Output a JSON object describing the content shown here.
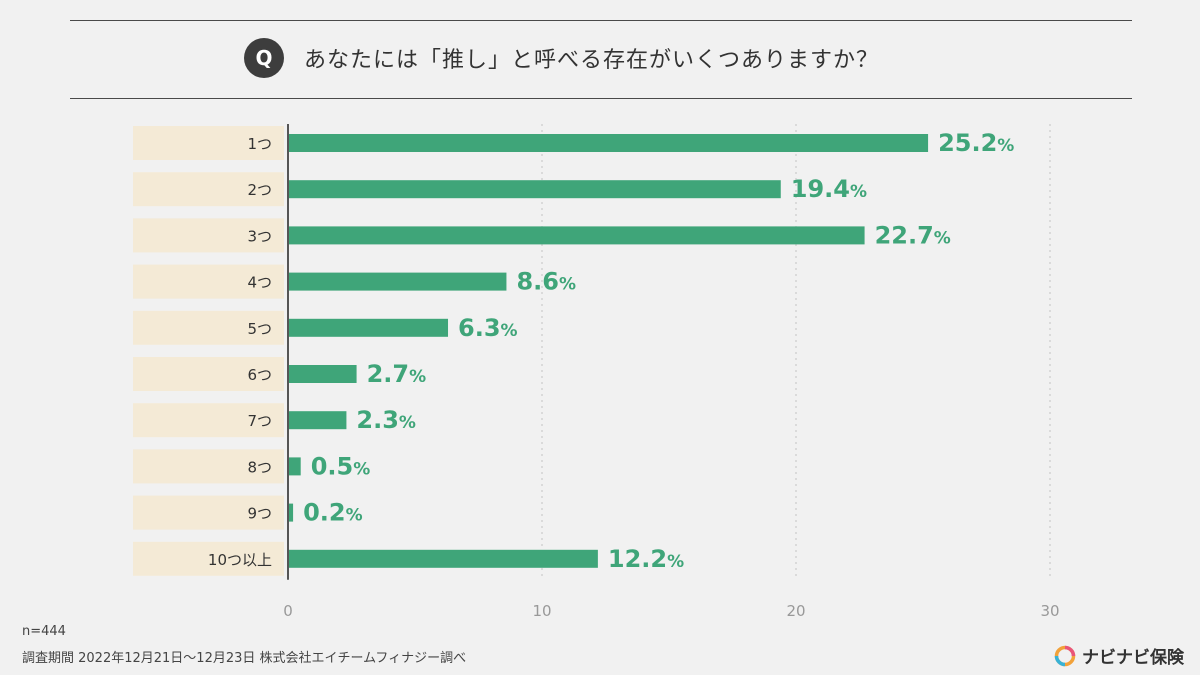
{
  "question": {
    "badge": "Q",
    "text": "あなたには「推し」と呼べる存在がいくつありますか？"
  },
  "chart_data": {
    "type": "bar",
    "orientation": "horizontal",
    "categories": [
      "1つ",
      "2つ",
      "3つ",
      "4つ",
      "5つ",
      "6つ",
      "7つ",
      "8つ",
      "9つ",
      "10つ以上"
    ],
    "values": [
      25.2,
      19.4,
      22.7,
      8.6,
      6.3,
      2.7,
      2.3,
      0.5,
      0.2,
      12.2
    ],
    "value_suffix": "%",
    "xticks": [
      0,
      10,
      20,
      30
    ],
    "xlim": [
      0,
      30
    ],
    "grid": "vertical dotted",
    "bar_color": "#3fa579",
    "label_color": "#3fa579",
    "category_bg": "#f4ead6"
  },
  "footer": {
    "sample": "n=444",
    "source": "調査期間 2022年12月21日〜12月23日 株式会社エイチームフィナジー調べ"
  },
  "logo": {
    "text": "ナビナビ保険",
    "icon": "navinavi-logo-icon"
  }
}
